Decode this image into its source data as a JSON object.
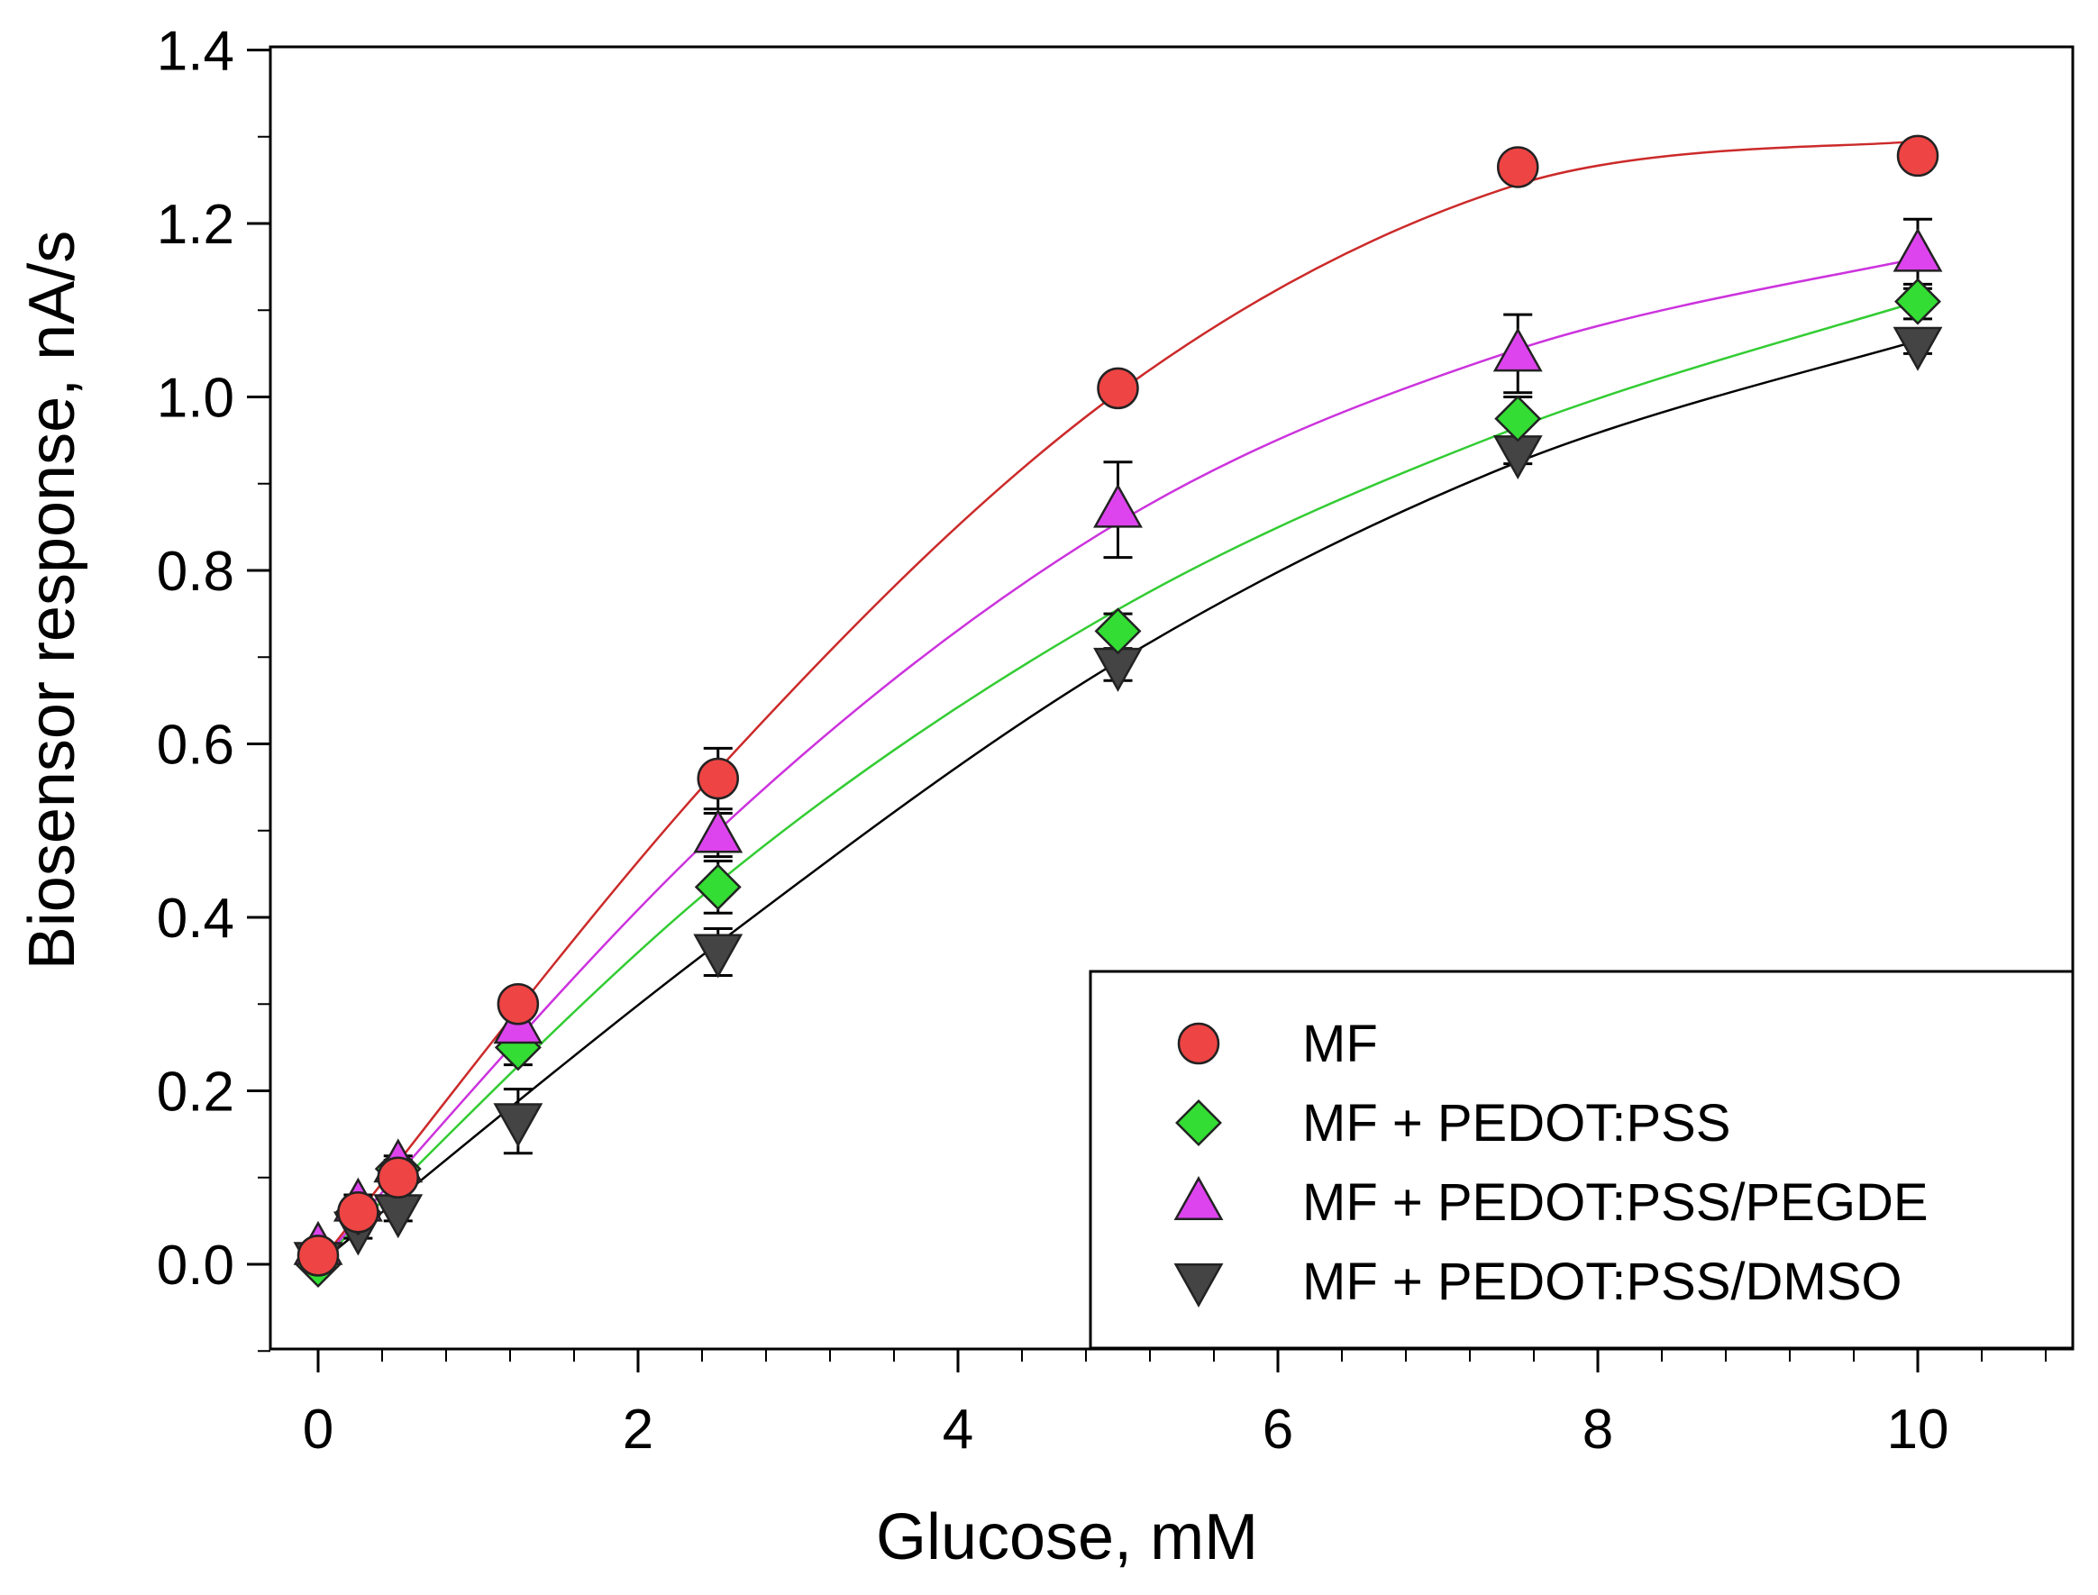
{
  "chart_data": {
    "type": "scatter",
    "title": "",
    "xlabel": "Glucose, mM",
    "ylabel": "Biosensor response, nA/s",
    "xlim": [
      -0.3,
      11.0
    ],
    "ylim": [
      -0.1,
      1.4
    ],
    "xticks": [
      0,
      2,
      4,
      6,
      8,
      10
    ],
    "xtick_labels": [
      "0",
      "2",
      "4",
      "6",
      "8",
      "10"
    ],
    "yticks": [
      0.0,
      0.2,
      0.4,
      0.6,
      0.8,
      1.0,
      1.2,
      1.4
    ],
    "ytick_labels": [
      "0.0",
      "0.2",
      "0.4",
      "0.6",
      "0.8",
      "1.0",
      "1.2",
      "1.4"
    ],
    "legend_position": "bottom-right",
    "grid": false,
    "series": [
      {
        "name": "MF",
        "marker": "circle",
        "color": "#ee4444",
        "line_color": "#cc2a2a",
        "x": [
          0,
          0.25,
          0.5,
          1.25,
          2.5,
          5,
          7.5,
          10
        ],
        "y": [
          0.01,
          0.06,
          0.1,
          0.3,
          0.56,
          1.01,
          1.265,
          1.278
        ],
        "err": [
          0.005,
          0.01,
          0.01,
          0.015,
          0.035,
          0.01,
          0.012,
          0.008
        ],
        "fit": [
          [
            0,
            0
          ],
          [
            2.5,
            0.57
          ],
          [
            5,
            1.005
          ],
          [
            7.5,
            1.245
          ],
          [
            10,
            1.295
          ]
        ]
      },
      {
        "name": "MF + PEDOT:PSS",
        "marker": "diamond",
        "color": "#33dd33",
        "line_color": "#33cc33",
        "x": [
          0,
          0.25,
          0.5,
          1.25,
          2.5,
          5,
          7.5,
          10
        ],
        "y": [
          0.0,
          0.06,
          0.11,
          0.25,
          0.435,
          0.73,
          0.975,
          1.11
        ],
        "err": [
          0.005,
          0.01,
          0.01,
          0.02,
          0.03,
          0.02,
          0.025,
          0.02
        ],
        "fit": [
          [
            0,
            0
          ],
          [
            2.5,
            0.44
          ],
          [
            5,
            0.755
          ],
          [
            7.5,
            0.965
          ],
          [
            10,
            1.11
          ]
        ]
      },
      {
        "name": "MF + PEDOT:PSS/PEGDE",
        "marker": "triangle-up",
        "color": "#dd44ee",
        "line_color": "#cc33dd",
        "x": [
          0,
          0.25,
          0.5,
          1.25,
          2.5,
          5,
          7.5,
          10
        ],
        "y": [
          0.02,
          0.07,
          0.115,
          0.275,
          0.495,
          0.87,
          1.05,
          1.165
        ],
        "err": [
          0.005,
          0.01,
          0.01,
          0.02,
          0.025,
          0.055,
          0.045,
          0.04
        ],
        "fit": [
          [
            0,
            0
          ],
          [
            2.5,
            0.5
          ],
          [
            5,
            0.855
          ],
          [
            7.5,
            1.055
          ],
          [
            10,
            1.16
          ]
        ]
      },
      {
        "name": "MF + PEDOT:PSS/DMSO",
        "marker": "triangle-down",
        "color": "#444444",
        "line_color": "#000000",
        "x": [
          0,
          0.25,
          0.5,
          1.25,
          2.5,
          5,
          7.5,
          10
        ],
        "y": [
          0.005,
          0.04,
          0.06,
          0.165,
          0.36,
          0.69,
          0.935,
          1.06
        ],
        "err": [
          0.005,
          0.01,
          0.01,
          0.037,
          0.027,
          0.017,
          0.012,
          0.01
        ],
        "fit": [
          [
            0,
            0
          ],
          [
            2.5,
            0.37
          ],
          [
            5,
            0.695
          ],
          [
            7.5,
            0.925
          ],
          [
            10,
            1.065
          ]
        ]
      }
    ]
  }
}
